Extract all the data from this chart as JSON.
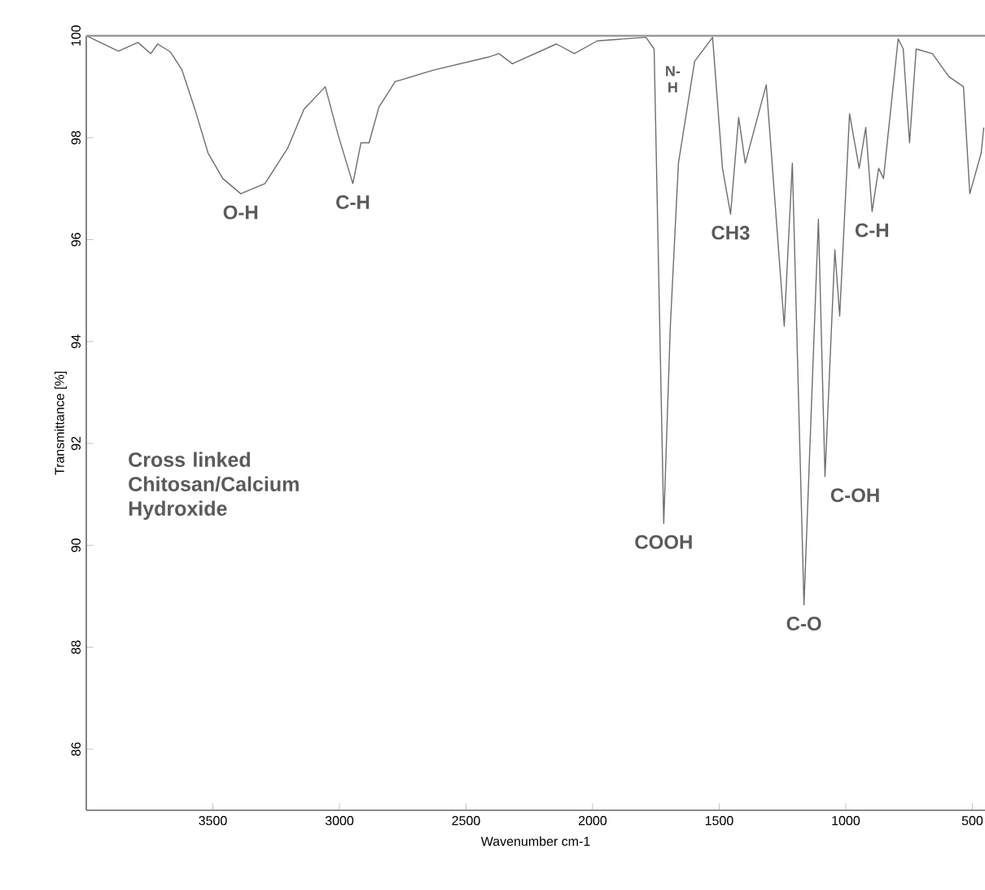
{
  "chart_data": {
    "type": "line",
    "xlabel": "Wavenumber cm-1",
    "ylabel": "Transmittance [%]",
    "xlim": [
      4000,
      450
    ],
    "ylim": [
      84.8,
      100
    ],
    "xticks": [
      3500,
      3000,
      2500,
      2000,
      1500,
      1000,
      500
    ],
    "yticks": [
      86,
      88,
      90,
      92,
      94,
      96,
      98,
      100
    ],
    "marker": "none",
    "line_style": "solid",
    "ref_lines": [
      {
        "axis": "y",
        "value": 100,
        "color": "#9a9a9a"
      }
    ],
    "series": [
      {
        "color": "#6e6e6e",
        "x": [
          4000,
          3873,
          3796,
          3745,
          3718,
          3667,
          3622,
          3571,
          3519,
          3461,
          3390,
          3294,
          3204,
          3140,
          3056,
          3005,
          2947,
          2915,
          2883,
          2844,
          2780,
          2625,
          2413,
          2370,
          2317,
          2143,
          2072,
          1982,
          1789,
          1757,
          1719,
          1693,
          1661,
          1597,
          1526,
          1487,
          1455,
          1423,
          1397,
          1314,
          1243,
          1211,
          1165,
          1108,
          1082,
          1043,
          1024,
          985,
          947,
          921,
          896,
          870,
          851,
          793,
          773,
          748,
          722,
          658,
          593,
          535,
          510,
          465,
          455
        ],
        "values": [
          100,
          99.7,
          99.87,
          99.65,
          99.84,
          99.68,
          99.33,
          98.56,
          97.7,
          97.2,
          96.9,
          97.1,
          97.8,
          98.56,
          99.0,
          98.05,
          97.1,
          97.9,
          97.9,
          98.6,
          99.1,
          99.33,
          99.58,
          99.65,
          99.45,
          99.84,
          99.65,
          99.9,
          99.97,
          99.74,
          90.43,
          94.3,
          97.5,
          99.5,
          99.97,
          97.4,
          96.5,
          98.4,
          97.5,
          99.04,
          94.3,
          97.5,
          88.83,
          96.4,
          91.35,
          95.8,
          94.5,
          98.47,
          97.4,
          98.2,
          96.55,
          97.4,
          97.2,
          99.94,
          99.74,
          97.9,
          99.74,
          99.65,
          99.2,
          99.0,
          96.9,
          97.7,
          98.2
        ]
      }
    ],
    "annotations": [
      {
        "text": "O-H",
        "x": 3390,
        "y": 96.9
      },
      {
        "text": "C-H",
        "x": 2947,
        "y": 97.1
      },
      {
        "text": "N-H",
        "x": 1560,
        "y": 99.7
      },
      {
        "text": "CH3",
        "x": 1455,
        "y": 96.5
      },
      {
        "text": "C-H",
        "x": 896,
        "y": 96.55
      },
      {
        "text": "COOH",
        "x": 1719,
        "y": 90.43
      },
      {
        "text": "C-O",
        "x": 1165,
        "y": 88.83
      },
      {
        "text": "C-OH",
        "x": 1082,
        "y": 91.35
      },
      "Cross linked Chitosan/Calcium Hydroxide"
    ]
  }
}
